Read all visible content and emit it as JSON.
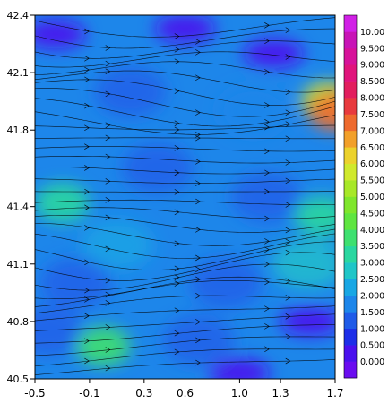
{
  "chart_data": {
    "type": "heatmap",
    "subtype": "filled-contour with streamlines",
    "title": "",
    "xlabel": "",
    "ylabel": "",
    "xlim": [
      -0.5,
      1.7
    ],
    "ylim": [
      40.5,
      42.4
    ],
    "x_ticks": [
      "-0.5",
      "-0.1",
      "0.3",
      "0.6",
      "1.0",
      "1.3",
      "1.7"
    ],
    "x_tick_values": [
      -0.5,
      -0.1,
      0.3,
      0.6,
      1.0,
      1.3,
      1.7
    ],
    "y_ticks": [
      "40.5",
      "40.8",
      "41.1",
      "41.4",
      "41.8",
      "42.1",
      "42.4"
    ],
    "y_tick_values": [
      40.5,
      40.8,
      41.1,
      41.4,
      41.8,
      42.1,
      42.4
    ],
    "colorbar": {
      "labels": [
        "0.000",
        "0.500",
        "1.000",
        "1.500",
        "2.000",
        "2.500",
        "3.000",
        "3.500",
        "4.000",
        "4.500",
        "5.000",
        "5.500",
        "6.000",
        "6.500",
        "7.000",
        "7.500",
        "8.000",
        "8.500",
        "9.000",
        "9.500",
        "10.00"
      ],
      "values": [
        0,
        0.5,
        1,
        1.5,
        2,
        2.5,
        3,
        3.5,
        4,
        4.5,
        5,
        5.5,
        6,
        6.5,
        7,
        7.5,
        8,
        8.5,
        9,
        9.5,
        10
      ],
      "colors": [
        "#6a0cf0",
        "#4a10ee",
        "#1d2ee8",
        "#1f5be8",
        "#1d86ea",
        "#18a7e4",
        "#1fc6c8",
        "#2ad7a0",
        "#3ee070",
        "#5fe540",
        "#7fe62c",
        "#a7e828",
        "#d0e92c",
        "#ecd22c",
        "#f2a02a",
        "#ee6a2e",
        "#e83a3e",
        "#e21e5e",
        "#e0147c",
        "#d7129a",
        "#c814b6",
        "#d120e6"
      ]
    },
    "grid": false,
    "legend_placement": "right colorbar",
    "background_field_mean": 1.6,
    "high_regions": [
      {
        "x": 0.0,
        "y": 40.67,
        "value": 3.8
      },
      {
        "x": -0.3,
        "y": 41.42,
        "value": 3.2
      },
      {
        "x": 1.6,
        "y": 41.35,
        "value": 3.4
      },
      {
        "x": 1.65,
        "y": 41.95,
        "value": 5.8
      },
      {
        "x": 1.7,
        "y": 41.9,
        "value": 7.0
      }
    ],
    "low_regions": [
      {
        "x": 0.6,
        "y": 42.33,
        "value": 0.2
      },
      {
        "x": 1.25,
        "y": 42.2,
        "value": 0.4
      },
      {
        "x": 1.52,
        "y": 40.8,
        "value": 0.2
      },
      {
        "x": 1.0,
        "y": 40.53,
        "value": 0.2
      },
      {
        "x": -0.35,
        "y": 42.3,
        "value": 0.3
      }
    ]
  }
}
